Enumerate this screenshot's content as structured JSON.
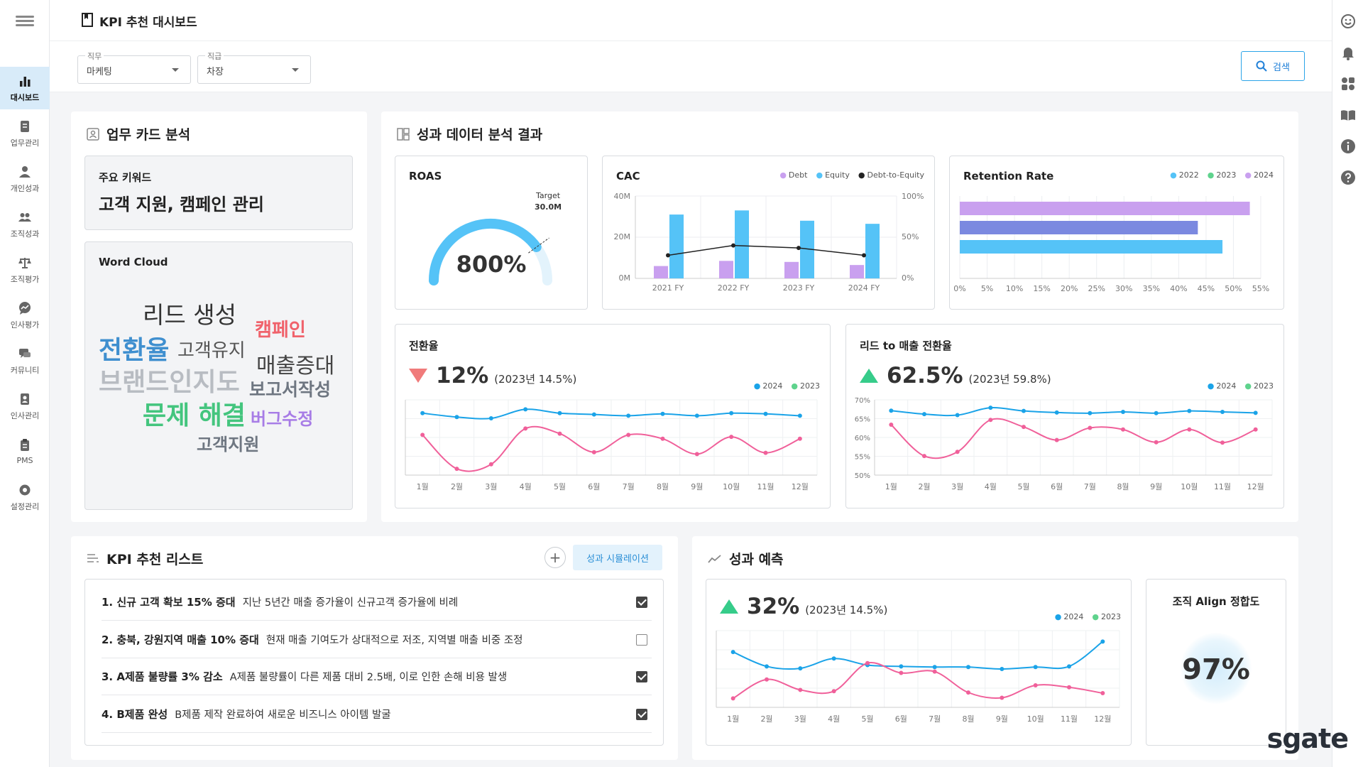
{
  "header": {
    "title": "KPI 추천 대시보드"
  },
  "nav": {
    "items": [
      {
        "label": "대시보드",
        "icon": "bar-chart-icon",
        "active": true
      },
      {
        "label": "업무관리",
        "icon": "document-icon"
      },
      {
        "label": "개인성과",
        "icon": "person-icon"
      },
      {
        "label": "조직성과",
        "icon": "group-icon"
      },
      {
        "label": "조직평가",
        "icon": "scale-icon"
      },
      {
        "label": "인사평가",
        "icon": "trend-bubble-icon"
      },
      {
        "label": "커뮤니티",
        "icon": "chat-icon"
      },
      {
        "label": "인사관리",
        "icon": "id-badge-icon"
      },
      {
        "label": "PMS",
        "icon": "clipboard-icon"
      },
      {
        "label": "설정관리",
        "icon": "gear-icon"
      }
    ]
  },
  "filters": {
    "job": {
      "label": "직무",
      "value": "마케팅"
    },
    "rank": {
      "label": "직급",
      "value": "차장"
    },
    "search_label": "검색"
  },
  "work_card": {
    "title": "업무 카드 분석",
    "keywords_label": "주요 키워드",
    "keywords_value": "고객 지원, 캠페인 관리",
    "wordcloud_title": "Word Cloud",
    "words": [
      {
        "text": "리드 생성",
        "color": "#333333"
      },
      {
        "text": "캠페인",
        "color": "#f0626b"
      },
      {
        "text": "전환율",
        "color": "#3f8fcf"
      },
      {
        "text": "고객유지",
        "color": "#555555"
      },
      {
        "text": "매출증대",
        "color": "#444444"
      },
      {
        "text": "브랜드인지도",
        "color": "#b8bcc2"
      },
      {
        "text": "보고서작성",
        "color": "#6e7681"
      },
      {
        "text": "문제 해결",
        "color": "#44c57e"
      },
      {
        "text": "버그수정",
        "color": "#a77ce6"
      },
      {
        "text": "고객지원",
        "color": "#6e7681"
      }
    ]
  },
  "analysis": {
    "title": "성과 데이터 분석 결과",
    "roas": {
      "title": "ROAS",
      "value": "800%",
      "target_label": "Target",
      "target_value": "30.0M"
    },
    "cac": {
      "title": "CAC",
      "legend": [
        "Debt",
        "Equity",
        "Debt-to-Equity"
      ],
      "y_left": [
        "40M",
        "20M",
        "0M"
      ],
      "y_right": [
        "100%",
        "50%",
        "0%"
      ]
    },
    "retention": {
      "title": "Retention Rate",
      "legend": [
        "2022",
        "2023",
        "2024"
      ]
    },
    "conversion": {
      "title": "전환율",
      "value": "12%",
      "prev": "(2023년 14.5%)"
    },
    "lead": {
      "title": "리드 to 매출 전환율",
      "value": "62.5%",
      "prev": "(2023년 59.8%)",
      "y_ticks": [
        "70%",
        "65%",
        "60%",
        "55%",
        "50%"
      ]
    }
  },
  "kpi_list": {
    "title": "KPI 추천 리스트",
    "sim_button": "성과 시뮬레이션",
    "items": [
      {
        "name": "1. 신규 고객 확보 15% 증대",
        "desc": "지난 5년간 매출 증가율이 신규고객 증가율에 비례",
        "checked": true
      },
      {
        "name": "2. 충북, 강원지역 매출 10% 증대",
        "desc": "현재 매출 기여도가 상대적으로 저조, 지역별 매출 비중 조정",
        "checked": false
      },
      {
        "name": "3. A제품 불량률 3% 감소",
        "desc": "A제품 불량률이 다른 제품 대비 2.5배, 이로 인한 손해 비용 발생",
        "checked": true
      },
      {
        "name": "4. B제품 완성",
        "desc": "B제품 제작 완료하여 새로운 비즈니스 아이템 발굴",
        "checked": true
      }
    ]
  },
  "forecast": {
    "title": "성과 예측",
    "value": "32%",
    "prev": "(2023년 14.5%)",
    "align_title": "조직 Align 정합도",
    "align_value": "97%"
  },
  "logo": "sgate",
  "chart_data": [
    {
      "type": "gauge",
      "title": "ROAS",
      "value_label": "800%",
      "fill": 0.8,
      "target": "30.0M",
      "target_position": 0.8,
      "color": "#55c3f7"
    },
    {
      "type": "bar",
      "title": "CAC",
      "categories": [
        "2021 FY",
        "2022 FY",
        "2023 FY",
        "2024 FY"
      ],
      "ylim": [
        0,
        40
      ],
      "y2lim": [
        0,
        100
      ],
      "series": [
        {
          "name": "Debt",
          "values": [
            6,
            8.5,
            8,
            6.5
          ],
          "color": "#c9a0ef"
        },
        {
          "name": "Equity",
          "values": [
            31,
            33,
            28,
            26.5
          ],
          "color": "#55c3f7"
        },
        {
          "name": "Debt-to-Equity",
          "values": [
            28,
            40,
            37,
            28
          ],
          "axis": "right",
          "kind": "line",
          "color": "#222222"
        }
      ]
    },
    {
      "type": "bar",
      "orientation": "horizontal",
      "title": "Retention Rate",
      "x_ticks": [
        "0%",
        "5%",
        "10%",
        "15%",
        "20%",
        "25%",
        "30%",
        "35%",
        "40%",
        "45%",
        "50%",
        "55%"
      ],
      "xlim": [
        0,
        55
      ],
      "series": [
        {
          "name": "2024",
          "values": [
            53
          ],
          "color": "#c9a0ef"
        },
        {
          "name": "2023",
          "values": [
            43.5
          ],
          "color": "#7b89e0"
        },
        {
          "name": "2022",
          "values": [
            48
          ],
          "color": "#55c3f7"
        }
      ]
    },
    {
      "type": "line",
      "title": "전환율",
      "categories": [
        "1월",
        "2월",
        "3월",
        "4월",
        "5월",
        "6월",
        "7월",
        "8월",
        "9월",
        "10월",
        "11월",
        "12월"
      ],
      "ylim": [
        0,
        100
      ],
      "series": [
        {
          "name": "2024",
          "values": [
            88,
            82,
            80,
            94,
            88,
            86,
            84,
            87,
            84,
            88,
            87,
            84
          ],
          "color": "#1aa3e8"
        },
        {
          "name": "2023",
          "values": [
            54,
            1,
            8,
            64,
            56,
            27,
            54,
            48,
            24,
            51,
            26,
            48
          ],
          "color": "#f0609a"
        }
      ]
    },
    {
      "type": "line",
      "title": "리드 to 매출 전환율",
      "categories": [
        "1월",
        "2월",
        "3월",
        "4월",
        "5월",
        "6월",
        "7월",
        "8월",
        "9월",
        "10월",
        "11월",
        "12월"
      ],
      "ylim": [
        50,
        70
      ],
      "series": [
        {
          "name": "2024",
          "values": [
            68.4,
            67.3,
            67,
            69.3,
            68.3,
            67.8,
            67.6,
            68,
            67.6,
            68.3,
            68,
            67.7
          ],
          "color": "#1aa3e8"
        },
        {
          "name": "2023",
          "values": [
            64,
            54.2,
            55.5,
            65.5,
            63.3,
            59.2,
            63,
            62.5,
            58.5,
            62.5,
            58.4,
            62.5
          ],
          "color": "#f0609a"
        }
      ]
    },
    {
      "type": "line",
      "title": "성과 예측",
      "categories": [
        "1월",
        "2월",
        "3월",
        "4월",
        "5월",
        "6월",
        "7월",
        "8월",
        "9월",
        "10월",
        "11월",
        "12월"
      ],
      "ylim": [
        0,
        100
      ],
      "series": [
        {
          "name": "2024",
          "values": [
            76,
            54,
            51,
            66,
            56,
            54,
            53,
            53,
            50,
            53,
            54,
            92
          ],
          "color": "#1aa3e8"
        },
        {
          "name": "2023",
          "values": [
            5,
            34,
            18,
            16,
            59,
            44,
            46,
            14,
            6,
            25,
            22,
            13
          ],
          "color": "#f0609a"
        }
      ]
    }
  ]
}
